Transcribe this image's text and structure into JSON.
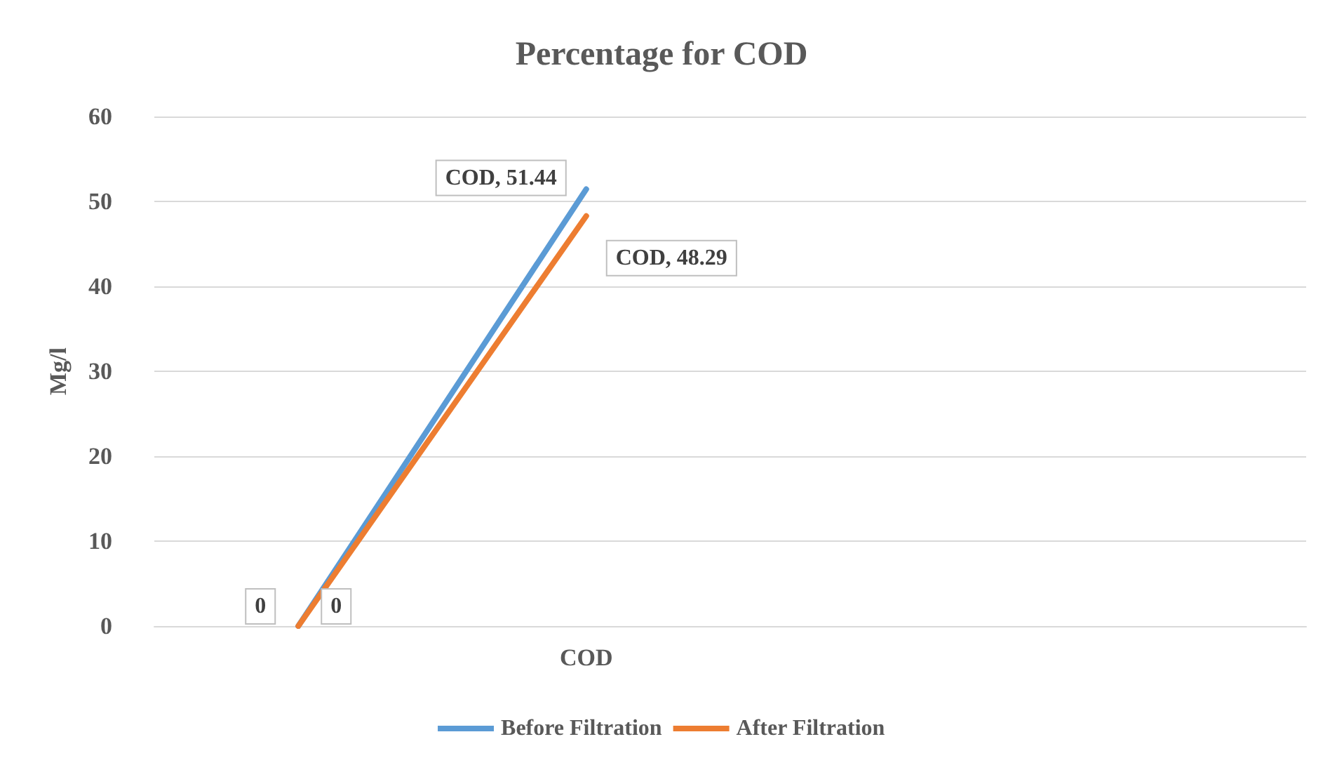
{
  "chart_data": {
    "type": "line",
    "title": "Percentage for COD",
    "ylabel": "Mg/l",
    "categories": [
      null,
      "COD",
      null,
      null
    ],
    "series": [
      {
        "name": "Before Filtration",
        "color": "#5b9bd5",
        "values": [
          0,
          51.44,
          null,
          null
        ],
        "value_labels": [
          "0",
          "COD, 51.44",
          null,
          null
        ]
      },
      {
        "name": "After Filtration",
        "color": "#ed7d31",
        "values": [
          0,
          48.29,
          null,
          null
        ],
        "value_labels": [
          "0",
          "COD, 48.29",
          null,
          null
        ]
      }
    ],
    "ylim": [
      0,
      60
    ],
    "yticks": [
      0,
      10,
      20,
      30,
      40,
      50,
      60
    ],
    "grid": "y",
    "legend": "bottom",
    "marker": "none"
  }
}
